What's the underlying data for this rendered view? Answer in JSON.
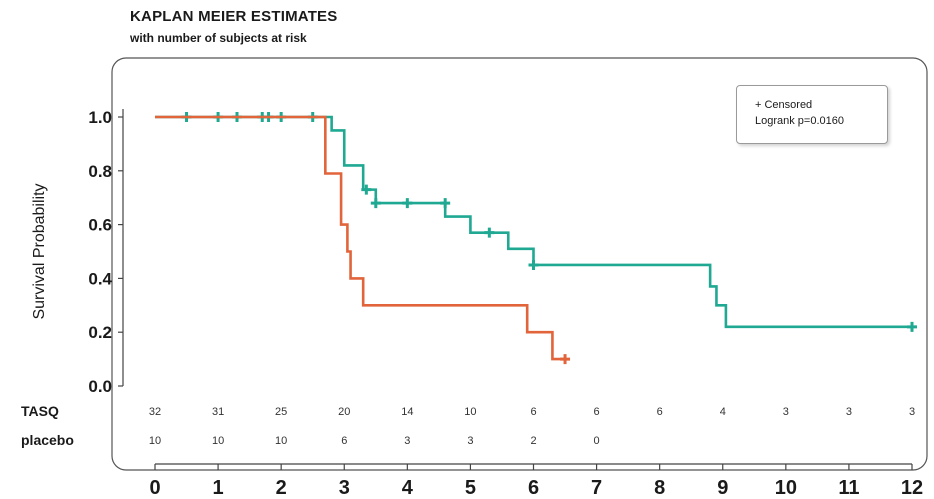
{
  "chart_data": {
    "type": "line",
    "title": "KAPLAN MEIER ESTIMATES",
    "subtitle": "with number of subjects at risk",
    "ylabel": "Survival Probability",
    "xlabel": "",
    "xlim": [
      0,
      12
    ],
    "ylim": [
      0,
      1.0
    ],
    "x_ticks": [
      "0",
      "1",
      "2",
      "3",
      "4",
      "5",
      "6",
      "7",
      "8",
      "9",
      "10",
      "11",
      "12"
    ],
    "y_ticks": [
      "0.0",
      "0.2",
      "0.4",
      "0.6",
      "0.8",
      "1.0"
    ],
    "legend": {
      "position": "top-right",
      "lines": [
        "+ Censored",
        "Logrank p=0.0160"
      ]
    },
    "series": [
      {
        "name": "TASQ",
        "color": "#1fa892",
        "steps": [
          [
            0,
            1.0
          ],
          [
            2.8,
            0.95
          ],
          [
            3.0,
            0.82
          ],
          [
            3.3,
            0.73
          ],
          [
            3.5,
            0.68
          ],
          [
            4.6,
            0.63
          ],
          [
            5.0,
            0.57
          ],
          [
            5.6,
            0.51
          ],
          [
            6.0,
            0.45
          ],
          [
            8.8,
            0.37
          ],
          [
            8.9,
            0.3
          ],
          [
            9.05,
            0.22
          ],
          [
            12.0,
            0.22
          ]
        ],
        "censored": [
          [
            0.5,
            1.0
          ],
          [
            1.0,
            1.0
          ],
          [
            1.3,
            1.0
          ],
          [
            1.7,
            1.0
          ],
          [
            1.8,
            1.0
          ],
          [
            2.0,
            1.0
          ],
          [
            2.5,
            1.0
          ],
          [
            3.35,
            0.73
          ],
          [
            3.5,
            0.68
          ],
          [
            4.0,
            0.68
          ],
          [
            4.6,
            0.68
          ],
          [
            5.3,
            0.57
          ],
          [
            6.0,
            0.45
          ],
          [
            12.0,
            0.22
          ]
        ]
      },
      {
        "name": "placebo",
        "color": "#e1643a",
        "steps": [
          [
            0,
            1.0
          ],
          [
            2.7,
            0.79
          ],
          [
            2.95,
            0.6
          ],
          [
            3.05,
            0.5
          ],
          [
            3.1,
            0.4
          ],
          [
            3.3,
            0.3
          ],
          [
            5.9,
            0.2
          ],
          [
            6.3,
            0.1
          ],
          [
            6.5,
            0.1
          ]
        ],
        "censored": [
          [
            6.5,
            0.1
          ]
        ]
      }
    ],
    "risk_table": {
      "times": [
        0,
        1,
        2,
        3,
        4,
        5,
        6,
        7,
        8,
        9,
        10,
        11,
        12
      ],
      "rows": [
        {
          "label": "TASQ",
          "values": [
            "32",
            "31",
            "25",
            "20",
            "14",
            "10",
            "6",
            "6",
            "6",
            "4",
            "3",
            "3",
            "3"
          ]
        },
        {
          "label": "placebo",
          "values": [
            "10",
            "10",
            "10",
            "6",
            "3",
            "3",
            "2",
            "0",
            "",
            "",
            "",
            "",
            ""
          ]
        }
      ]
    }
  }
}
